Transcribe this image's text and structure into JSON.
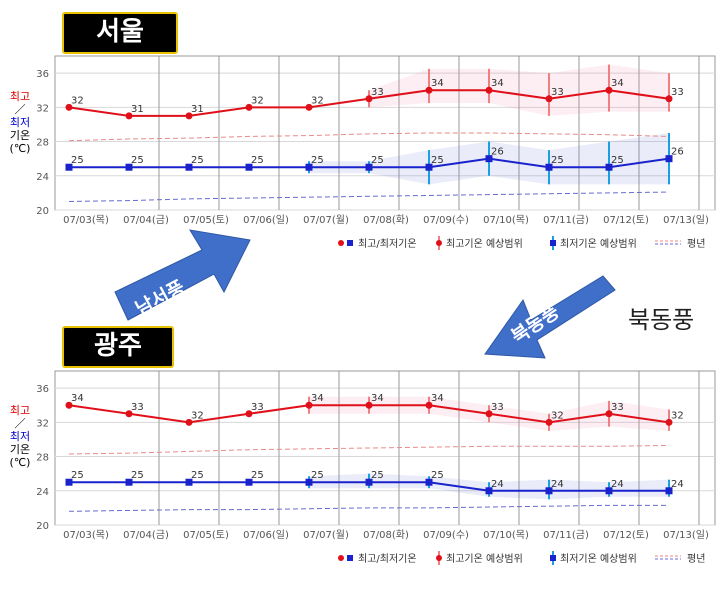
{
  "arrows": {
    "southwest": "남서풍",
    "northeast": "북동풍"
  },
  "wind_note": "북동풍",
  "side_label": {
    "high": "최고",
    "slash": "／",
    "low": "최저",
    "temp": "기온",
    "unit": "(℃)"
  },
  "colors": {
    "high": "#e0101a",
    "low": "#1a22cc",
    "arrow": "#3f6fc9"
  },
  "chart_data": [
    {
      "type": "line",
      "badge": "서울",
      "x": [
        "07/03(목)",
        "07/04(금)",
        "07/05(토)",
        "07/06(일)",
        "07/07(월)",
        "07/08(화)",
        "07/09(수)",
        "07/10(목)",
        "07/11(금)",
        "07/12(토)",
        "07/13(일)"
      ],
      "ylim": [
        20,
        38
      ],
      "yticks": [
        20,
        24,
        28,
        32,
        36
      ],
      "series": [
        {
          "name": "최고기온",
          "color": "#e0101a",
          "values": [
            32,
            31,
            31,
            32,
            32,
            33,
            34,
            34,
            33,
            34,
            33
          ],
          "range": [
            null,
            null,
            null,
            null,
            null,
            [
              32,
              34
            ],
            [
              32.5,
              36.5
            ],
            [
              32.5,
              36.5
            ],
            [
              31,
              36
            ],
            [
              31.5,
              37
            ],
            [
              31.5,
              36
            ]
          ]
        },
        {
          "name": "최저기온",
          "color": "#1a22cc",
          "values": [
            25,
            25,
            25,
            25,
            25,
            25,
            25,
            26,
            25,
            25,
            26
          ],
          "range": [
            null,
            null,
            null,
            null,
            [
              24.3,
              25.7
            ],
            [
              24.3,
              25.7
            ],
            [
              23,
              27
            ],
            [
              24,
              28
            ],
            [
              23,
              27
            ],
            [
              23,
              28
            ],
            [
              23,
              29
            ]
          ]
        }
      ],
      "normal_high": [
        28.1,
        28.3,
        28.4,
        28.6,
        28.7,
        28.9,
        29.0,
        29.0,
        28.9,
        28.8,
        28.6
      ],
      "normal_low": [
        21.0,
        21.1,
        21.3,
        21.4,
        21.5,
        21.6,
        21.7,
        21.8,
        21.9,
        22.0,
        22.1
      ],
      "legend": [
        "최고/최저기온",
        "최고기온 예상범위",
        "최저기온 예상범위",
        "평년"
      ]
    },
    {
      "type": "line",
      "badge": "광주",
      "x": [
        "07/03(목)",
        "07/04(금)",
        "07/05(토)",
        "07/06(일)",
        "07/07(월)",
        "07/08(화)",
        "07/09(수)",
        "07/10(목)",
        "07/11(금)",
        "07/12(토)",
        "07/13(일)"
      ],
      "ylim": [
        20,
        38
      ],
      "yticks": [
        20,
        24,
        28,
        32,
        36
      ],
      "series": [
        {
          "name": "최고기온",
          "color": "#e0101a",
          "values": [
            34,
            33,
            32,
            33,
            34,
            34,
            34,
            33,
            32,
            33,
            32
          ],
          "range": [
            null,
            null,
            null,
            null,
            [
              33,
              35
            ],
            [
              33,
              35
            ],
            [
              33,
              35
            ],
            [
              32,
              34
            ],
            [
              31,
              33
            ],
            [
              31.5,
              34.5
            ],
            [
              31,
              33.5
            ]
          ]
        },
        {
          "name": "최저기온",
          "color": "#1a22cc",
          "values": [
            25,
            25,
            25,
            25,
            25,
            25,
            25,
            24,
            24,
            24,
            24
          ],
          "range": [
            null,
            null,
            null,
            null,
            [
              24.3,
              25.7
            ],
            [
              24.3,
              26
            ],
            [
              24.3,
              25.7
            ],
            [
              23.3,
              25
            ],
            [
              23,
              25.3
            ],
            [
              23.3,
              25
            ],
            [
              23.3,
              25.3
            ]
          ]
        }
      ],
      "normal_high": [
        28.3,
        28.4,
        28.6,
        28.8,
        28.9,
        29.0,
        29.1,
        29.2,
        29.2,
        29.2,
        29.3
      ],
      "normal_low": [
        21.6,
        21.7,
        21.8,
        21.8,
        21.9,
        22.0,
        22.0,
        22.1,
        22.2,
        22.3,
        22.3
      ],
      "legend": [
        "최고/최저기온",
        "최고기온 예상범위",
        "최저기온 예상범위",
        "평년"
      ]
    }
  ]
}
